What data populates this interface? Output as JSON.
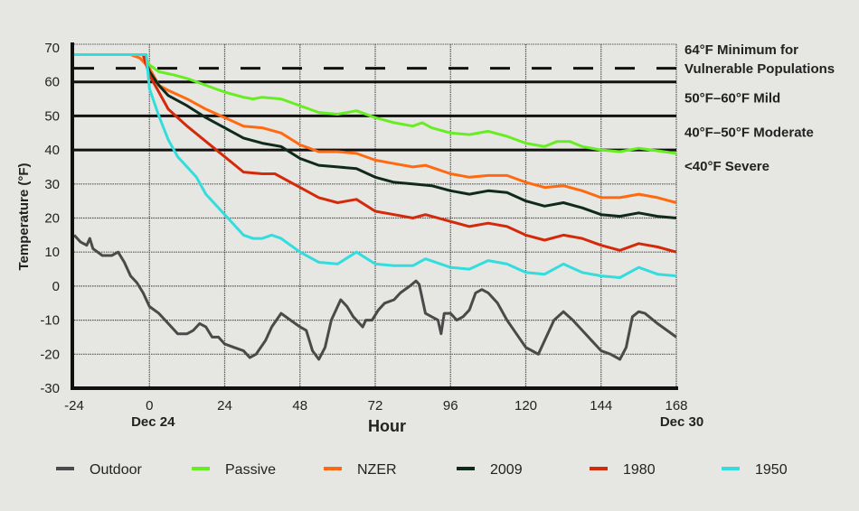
{
  "chart_data": {
    "type": "line",
    "xlabel": "Hour",
    "ylabel": "Temperature (°F)",
    "xlim": [
      -24,
      168
    ],
    "ylim": [
      -30,
      70
    ],
    "xticks": [
      -24,
      0,
      24,
      48,
      72,
      96,
      120,
      144,
      168
    ],
    "yticks": [
      -30,
      -20,
      -10,
      0,
      10,
      20,
      30,
      40,
      50,
      60,
      70
    ],
    "date_labels": [
      {
        "x": 0,
        "label": "Dec 24"
      },
      {
        "x": 168,
        "label": "Dec 30"
      }
    ],
    "grid": true,
    "legend_position": "bottom",
    "thresholds": [
      {
        "y": 64,
        "style": "dashed",
        "label_lines": [
          "64°F Minimum for",
          "Vulnerable Populations"
        ]
      },
      {
        "y": 60,
        "style": "solid",
        "label_lines": [
          "50°F–60°F Mild"
        ]
      },
      {
        "y": 50,
        "style": "solid",
        "label_lines": [
          "40°F–50°F Moderate"
        ]
      },
      {
        "y": 40,
        "style": "solid",
        "label_lines": [
          "<40°F Severe"
        ]
      }
    ],
    "series": [
      {
        "name": "Outdoor",
        "color": "#4a4a4a",
        "points": [
          [
            -24,
            15
          ],
          [
            -22,
            13
          ],
          [
            -20,
            12
          ],
          [
            -19,
            14
          ],
          [
            -18,
            11
          ],
          [
            -15,
            9
          ],
          [
            -12,
            9
          ],
          [
            -10,
            10
          ],
          [
            -8,
            7
          ],
          [
            -6,
            3
          ],
          [
            -4,
            1
          ],
          [
            -2,
            -2
          ],
          [
            0,
            -6
          ],
          [
            3,
            -8
          ],
          [
            6,
            -11
          ],
          [
            9,
            -14
          ],
          [
            12,
            -14
          ],
          [
            14,
            -13
          ],
          [
            16,
            -11
          ],
          [
            18,
            -12
          ],
          [
            20,
            -15
          ],
          [
            22,
            -15
          ],
          [
            24,
            -17
          ],
          [
            27,
            -18
          ],
          [
            30,
            -19
          ],
          [
            32,
            -21
          ],
          [
            34,
            -20
          ],
          [
            37,
            -16
          ],
          [
            39,
            -12
          ],
          [
            42,
            -8
          ],
          [
            45,
            -10
          ],
          [
            48,
            -12
          ],
          [
            50,
            -13
          ],
          [
            52,
            -19
          ],
          [
            54,
            -21.5
          ],
          [
            56,
            -18
          ],
          [
            58,
            -10
          ],
          [
            61,
            -4
          ],
          [
            63,
            -6
          ],
          [
            65,
            -9
          ],
          [
            67,
            -11
          ],
          [
            68,
            -12
          ],
          [
            69,
            -10
          ],
          [
            71,
            -10
          ],
          [
            73,
            -7
          ],
          [
            75,
            -5
          ],
          [
            78,
            -4
          ],
          [
            80,
            -2
          ],
          [
            83,
            0
          ],
          [
            85,
            1.5
          ],
          [
            86,
            0.5
          ],
          [
            88,
            -8
          ],
          [
            90,
            -9
          ],
          [
            92,
            -10
          ],
          [
            93,
            -14
          ],
          [
            94,
            -8
          ],
          [
            96,
            -8
          ],
          [
            98,
            -10
          ],
          [
            100,
            -9
          ],
          [
            102,
            -7
          ],
          [
            104,
            -2
          ],
          [
            106,
            -1
          ],
          [
            108,
            -2
          ],
          [
            111,
            -5
          ],
          [
            114,
            -10
          ],
          [
            117,
            -14
          ],
          [
            120,
            -18
          ],
          [
            122,
            -19
          ],
          [
            124,
            -20
          ],
          [
            126,
            -16
          ],
          [
            129,
            -10
          ],
          [
            132,
            -7.5
          ],
          [
            135,
            -10
          ],
          [
            138,
            -13
          ],
          [
            141,
            -16
          ],
          [
            144,
            -19
          ],
          [
            147,
            -20
          ],
          [
            150,
            -21.5
          ],
          [
            152,
            -18
          ],
          [
            154,
            -9
          ],
          [
            156,
            -7.5
          ],
          [
            158,
            -8
          ],
          [
            162,
            -11
          ],
          [
            168,
            -15
          ]
        ]
      },
      {
        "name": "Passive",
        "color": "#66ee22",
        "points": [
          [
            -24,
            68
          ],
          [
            -2,
            68
          ],
          [
            0,
            65
          ],
          [
            3,
            63
          ],
          [
            8,
            62
          ],
          [
            12,
            61
          ],
          [
            18,
            59
          ],
          [
            24,
            57
          ],
          [
            30,
            55.5
          ],
          [
            33,
            55
          ],
          [
            36,
            55.5
          ],
          [
            42,
            55
          ],
          [
            48,
            53
          ],
          [
            54,
            51
          ],
          [
            60,
            50.5
          ],
          [
            66,
            51.5
          ],
          [
            72,
            49.5
          ],
          [
            78,
            48
          ],
          [
            84,
            47
          ],
          [
            87,
            48
          ],
          [
            90,
            46.5
          ],
          [
            96,
            45
          ],
          [
            102,
            44.5
          ],
          [
            108,
            45.5
          ],
          [
            114,
            44
          ],
          [
            120,
            42
          ],
          [
            126,
            41
          ],
          [
            130,
            42.5
          ],
          [
            134,
            42.5
          ],
          [
            138,
            41
          ],
          [
            144,
            40
          ],
          [
            150,
            39.5
          ],
          [
            156,
            40.5
          ],
          [
            160,
            40
          ],
          [
            164,
            39.5
          ],
          [
            168,
            39
          ]
        ]
      },
      {
        "name": "NZER",
        "color": "#ff6a10",
        "points": [
          [
            -24,
            68
          ],
          [
            -6,
            68
          ],
          [
            -3,
            67
          ],
          [
            0,
            64
          ],
          [
            3,
            59
          ],
          [
            6,
            57.5
          ],
          [
            12,
            55
          ],
          [
            18,
            52
          ],
          [
            24,
            49.5
          ],
          [
            30,
            47
          ],
          [
            36,
            46.5
          ],
          [
            42,
            45
          ],
          [
            48,
            41.5
          ],
          [
            54,
            39.5
          ],
          [
            60,
            39.5
          ],
          [
            66,
            39
          ],
          [
            72,
            37
          ],
          [
            78,
            36
          ],
          [
            84,
            35
          ],
          [
            88,
            35.5
          ],
          [
            96,
            33
          ],
          [
            102,
            32
          ],
          [
            108,
            32.5
          ],
          [
            114,
            32.5
          ],
          [
            120,
            30.5
          ],
          [
            126,
            29
          ],
          [
            132,
            29.5
          ],
          [
            138,
            28
          ],
          [
            144,
            26
          ],
          [
            150,
            26
          ],
          [
            156,
            27
          ],
          [
            162,
            26
          ],
          [
            168,
            24.5
          ]
        ]
      },
      {
        "name": "2009",
        "color": "#0f2a1a",
        "points": [
          [
            -24,
            68
          ],
          [
            -2,
            68
          ],
          [
            0,
            63
          ],
          [
            3,
            59
          ],
          [
            6,
            56
          ],
          [
            12,
            53
          ],
          [
            18,
            49.5
          ],
          [
            24,
            46.5
          ],
          [
            30,
            43.5
          ],
          [
            36,
            42
          ],
          [
            42,
            41
          ],
          [
            48,
            37.5
          ],
          [
            54,
            35.5
          ],
          [
            60,
            35
          ],
          [
            66,
            34.5
          ],
          [
            72,
            32
          ],
          [
            78,
            30.5
          ],
          [
            84,
            30
          ],
          [
            90,
            29.5
          ],
          [
            96,
            28
          ],
          [
            102,
            27
          ],
          [
            108,
            28
          ],
          [
            114,
            27.5
          ],
          [
            120,
            25
          ],
          [
            126,
            23.5
          ],
          [
            132,
            24.5
          ],
          [
            138,
            23
          ],
          [
            144,
            21
          ],
          [
            150,
            20.5
          ],
          [
            156,
            21.5
          ],
          [
            162,
            20.5
          ],
          [
            168,
            20
          ]
        ]
      },
      {
        "name": "1980",
        "color": "#d42a0a",
        "points": [
          [
            -24,
            68
          ],
          [
            -2,
            68
          ],
          [
            0,
            62
          ],
          [
            3,
            57
          ],
          [
            6,
            52
          ],
          [
            12,
            47
          ],
          [
            18,
            42.5
          ],
          [
            24,
            38
          ],
          [
            30,
            33.5
          ],
          [
            36,
            33
          ],
          [
            40,
            33
          ],
          [
            48,
            29
          ],
          [
            54,
            26
          ],
          [
            60,
            24.5
          ],
          [
            66,
            25.5
          ],
          [
            72,
            22
          ],
          [
            78,
            21
          ],
          [
            84,
            20
          ],
          [
            88,
            21
          ],
          [
            96,
            19
          ],
          [
            102,
            17.5
          ],
          [
            108,
            18.5
          ],
          [
            114,
            17.5
          ],
          [
            120,
            15
          ],
          [
            126,
            13.5
          ],
          [
            132,
            15
          ],
          [
            138,
            14
          ],
          [
            144,
            12
          ],
          [
            150,
            10.5
          ],
          [
            156,
            12.5
          ],
          [
            162,
            11.5
          ],
          [
            168,
            10
          ]
        ]
      },
      {
        "name": "1950",
        "color": "#33dddd",
        "points": [
          [
            -24,
            68
          ],
          [
            -1,
            68
          ],
          [
            0,
            58
          ],
          [
            3,
            50
          ],
          [
            6,
            43
          ],
          [
            9,
            38
          ],
          [
            12,
            35
          ],
          [
            15,
            32
          ],
          [
            18,
            27
          ],
          [
            24,
            21
          ],
          [
            30,
            15
          ],
          [
            33,
            14
          ],
          [
            36,
            14
          ],
          [
            39,
            15
          ],
          [
            42,
            14
          ],
          [
            48,
            10
          ],
          [
            54,
            7
          ],
          [
            60,
            6.5
          ],
          [
            66,
            10
          ],
          [
            72,
            6.5
          ],
          [
            78,
            6
          ],
          [
            84,
            6
          ],
          [
            88,
            8
          ],
          [
            96,
            5.5
          ],
          [
            102,
            5
          ],
          [
            108,
            7.5
          ],
          [
            114,
            6.5
          ],
          [
            120,
            4
          ],
          [
            126,
            3.5
          ],
          [
            132,
            6.5
          ],
          [
            138,
            4
          ],
          [
            144,
            3
          ],
          [
            150,
            2.5
          ],
          [
            156,
            5.5
          ],
          [
            162,
            3.5
          ],
          [
            168,
            3
          ]
        ]
      }
    ]
  }
}
